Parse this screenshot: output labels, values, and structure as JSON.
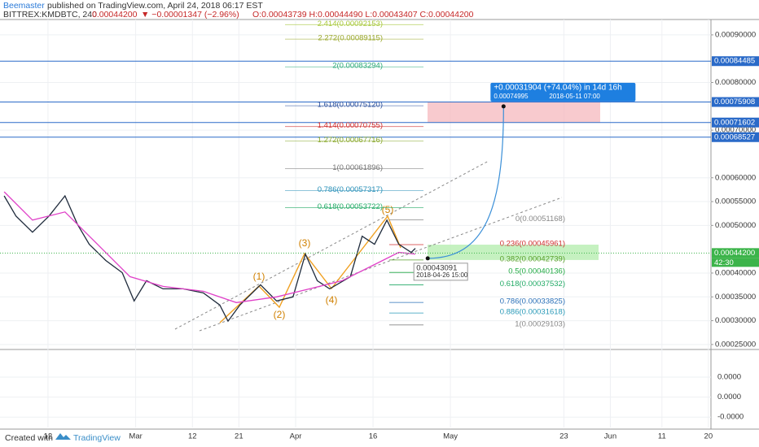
{
  "header": {
    "author": "Beemaster",
    "published": "published on TradingView.com, April 24, 2018 06:17 EST",
    "symbol": "BITTREX:KMDBTC, 240",
    "last": "0.00044200",
    "change": "▼ −0.00001347 (−2.96%)",
    "ohlc": "O:0.00043739 H:0.00044490 L:0.00043407 C:0.00044200"
  },
  "chart_data": {
    "type": "line",
    "xlim": [
      2.7,
      140.5
    ],
    "xticks": [
      {
        "value": 12,
        "label": "12"
      },
      {
        "value": 29,
        "label": "Mar"
      },
      {
        "value": 40,
        "label": "12"
      },
      {
        "value": 49,
        "label": "21"
      },
      {
        "value": 60,
        "label": "Apr"
      },
      {
        "value": 75,
        "label": "16"
      },
      {
        "value": 90,
        "label": "May"
      },
      {
        "value": 112,
        "label": "23"
      },
      {
        "value": 121,
        "label": "Jun"
      },
      {
        "value": 131,
        "label": "11"
      },
      {
        "value": 140,
        "label": "20"
      }
    ],
    "ylim": [
      0.00023956,
      0.00093226
    ],
    "yticks": [
      {
        "value": 0.0009,
        "label": "0.00090000"
      },
      {
        "value": 0.0008,
        "label": "0.00080000"
      },
      {
        "value": 0.0007,
        "label": "0.00070000"
      },
      {
        "value": 0.0006,
        "label": "0.00060000"
      },
      {
        "value": 0.00055,
        "label": "0.00055000"
      },
      {
        "value": 0.0005,
        "label": "0.00050000"
      },
      {
        "value": 0.0004,
        "label": "0.00040000"
      },
      {
        "value": 0.00035,
        "label": "0.00035000"
      },
      {
        "value": 0.0003,
        "label": "0.00030000"
      },
      {
        "value": 0.00025,
        "label": "0.00025000"
      }
    ],
    "series": [
      {
        "color": "#1f2b3c",
        "x": [
          3.5,
          5.8,
          9.0,
          12.2,
          15.3,
          17.7,
          20.0,
          23.2,
          26.4,
          28.7,
          31.1,
          34.3,
          38.2,
          42.1,
          45.3,
          46.9,
          49.2,
          53.2,
          56.3,
          59.5,
          61.9,
          64.2,
          66.6,
          70.6,
          72.9,
          75.3,
          77.7,
          80.0,
          82.4,
          83.2
        ],
        "values": [
          0.0005621,
          0.0005197,
          0.0004857,
          0.0005197,
          0.0005621,
          0.0005027,
          0.0004603,
          0.0004263,
          0.0004008,
          0.0003414,
          0.0003839,
          0.0003669,
          0.0003669,
          0.0003584,
          0.0003329,
          0.000299,
          0.0003329,
          0.0003754,
          0.0003414,
          0.0003499,
          0.0004399,
          0.0003839,
          0.0003669,
          0.0003924,
          0.0004772,
          0.0004603,
          0.0005112,
          0.0004603,
          0.0004433,
          0.0004518
        ]
      },
      {
        "color": "#e040c8",
        "x": [
          3.5,
          9.0,
          15.3,
          21.6,
          27.9,
          34.3,
          42.1,
          48.5,
          56.3,
          62.7,
          69.0,
          75.3,
          80.0,
          83.2
        ],
        "values": [
          0.0005706,
          0.0005112,
          0.0005282,
          0.0004603,
          0.0003924,
          0.000372,
          0.0003618,
          0.000338,
          0.0003499,
          0.0003669,
          0.0003839,
          0.0004178,
          0.0004433,
          0.0004399
        ]
      }
    ],
    "levels": [
      {
        "value": 0.00084485,
        "label": "0.00084485"
      },
      {
        "value": 0.00075908,
        "label": "0.00075908"
      },
      {
        "value": 0.00071602,
        "label": "0.00071602"
      },
      {
        "value": 0.00068527,
        "label": "0.00068527"
      }
    ],
    "current_price": {
      "value": 0.000442,
      "label": "0.00044200",
      "countdown": "42:30"
    },
    "fib_extension": [
      {
        "value": 0.00092153,
        "label": "2.414(0.00092153)",
        "color": "#a8c83c"
      },
      {
        "value": 0.00089115,
        "label": "2.272(0.00089115)",
        "color": "#9aa82c"
      },
      {
        "value": 0.00083294,
        "label": "2(0.00083294)",
        "color": "#2eaa7a"
      },
      {
        "value": 0.0007512,
        "label": "1.618(0.00075120)",
        "color": "#2a4f9c"
      },
      {
        "value": 0.00070755,
        "label": "1.414(0.00070755)",
        "color": "#d03030"
      },
      {
        "value": 0.00067716,
        "label": "1.272(0.00067716)",
        "color": "#8aa82c"
      },
      {
        "value": 0.00061896,
        "label": "1(0.00061896)",
        "color": "#777777"
      },
      {
        "value": 0.00057317,
        "label": "0.786(0.00057317)",
        "color": "#2a90b8"
      },
      {
        "value": 0.00053722,
        "label": "0.618(0.00053722)",
        "color": "#22aa66"
      }
    ],
    "fib_retracement": [
      {
        "value": 0.00051168,
        "label": "0(0.00051168)",
        "color": "#888888"
      },
      {
        "value": 0.00045961,
        "label": "0.236(0.00045961)",
        "color": "#d03030"
      },
      {
        "value": 0.00042739,
        "label": "0.382(0.00042739)",
        "color": "#5aa02c"
      },
      {
        "value": 0.00040136,
        "label": "0.5(0.00040136)",
        "color": "#22aa44"
      },
      {
        "value": 0.00037532,
        "label": "0.618(0.00037532)",
        "color": "#22aa66"
      },
      {
        "value": 0.00033825,
        "label": "0.786(0.00033825)",
        "color": "#2a70b8"
      },
      {
        "value": 0.00031618,
        "label": "0.886(0.00031618)",
        "color": "#2a9ab8"
      },
      {
        "value": 0.00029103,
        "label": "1(0.00029103)",
        "color": "#888888"
      }
    ],
    "waves": [
      "(1)",
      "(2)",
      "(3)",
      "(4)",
      "(5)"
    ],
    "projection": {
      "start": {
        "x": 85.6,
        "value": 0.00043091,
        "label": "0.00043091",
        "date": "2018-04-26 15:00"
      },
      "end": {
        "x": 100.3,
        "value": 0.00074995,
        "label": "0.00074995",
        "date": "2018-05-11 07:00",
        "change": "+0.00031904 (+74.04%) in 14d 16h"
      }
    },
    "indicator": {
      "y2lim": [
        -1.52e-05,
        2.3e-05
      ],
      "y2ticks": [
        {
          "value": 1e-05,
          "label": "0.0000"
        },
        {
          "value": 0,
          "label": "0.0000"
        },
        {
          "value": -1e-05,
          "label": "-0.0000"
        }
      ]
    }
  },
  "footer": {
    "created": "Created with",
    "brand": "TradingView"
  }
}
